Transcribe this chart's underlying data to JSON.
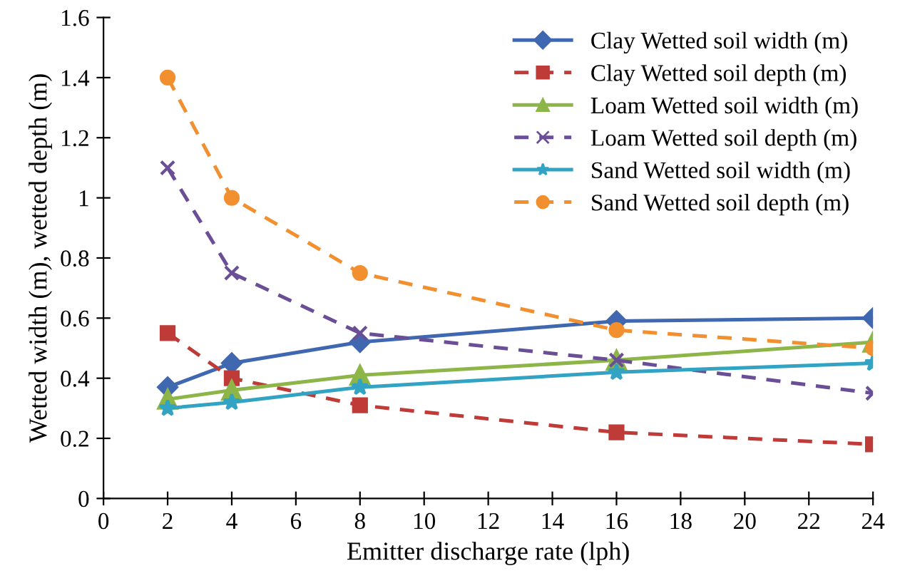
{
  "chart_data": {
    "type": "line",
    "xlabel": "Emitter discharge rate (lph)",
    "ylabel": "Wetted width (m), wetted depth (m)",
    "x": [
      2,
      4,
      8,
      16,
      24
    ],
    "series": [
      {
        "name": "Clay Wetted soil width (m)",
        "color": "#3f68b0",
        "marker": "diamond",
        "line_style": "solid",
        "values": [
          0.37,
          0.45,
          0.52,
          0.59,
          0.6
        ]
      },
      {
        "name": "Clay Wetted soil depth (m)",
        "color": "#be3b38",
        "marker": "square",
        "line_style": "dashed",
        "values": [
          0.55,
          0.4,
          0.31,
          0.22,
          0.18
        ]
      },
      {
        "name": "Loam Wetted soil width (m)",
        "color": "#8db548",
        "marker": "triangle",
        "line_style": "solid",
        "values": [
          0.33,
          0.36,
          0.41,
          0.46,
          0.52
        ]
      },
      {
        "name": "Loam Wetted soil depth (m)",
        "color": "#6a4f96",
        "marker": "cross",
        "line_style": "dashed",
        "values": [
          1.1,
          0.75,
          0.55,
          0.46,
          0.35
        ]
      },
      {
        "name": "Sand Wetted soil width (m)",
        "color": "#33a3c4",
        "marker": "star",
        "line_style": "solid",
        "values": [
          0.3,
          0.32,
          0.37,
          0.42,
          0.45
        ]
      },
      {
        "name": "Sand Wetted soil depth (m)",
        "color": "#f28f2e",
        "marker": "circle",
        "line_style": "dashed",
        "values": [
          1.4,
          1.0,
          0.75,
          0.56,
          0.5
        ]
      }
    ],
    "xlim": [
      0,
      24
    ],
    "ylim": [
      0,
      1.6
    ],
    "xticks": [
      0,
      2,
      4,
      6,
      8,
      10,
      12,
      14,
      16,
      18,
      20,
      22,
      24
    ],
    "yticks": [
      0,
      0.2,
      0.4,
      0.6,
      0.8,
      1,
      1.2,
      1.4,
      1.6
    ],
    "grid": false,
    "legend": "top right"
  }
}
